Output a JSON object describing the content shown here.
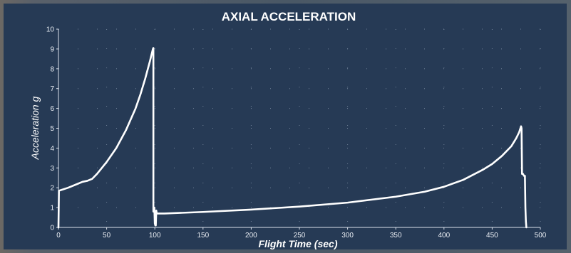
{
  "chart_data": {
    "type": "line",
    "title": "AXIAL ACCELERATION",
    "xlabel": "Flight Time (sec)",
    "ylabel": "Acceleration g",
    "xlim": [
      0,
      500
    ],
    "ylim": [
      0,
      10
    ],
    "xticks": [
      0,
      50,
      100,
      150,
      200,
      250,
      300,
      350,
      400,
      450,
      500
    ],
    "yticks": [
      0,
      1,
      2,
      3,
      4,
      5,
      6,
      7,
      8,
      9,
      10
    ],
    "grid": true,
    "line_color": "#ffffff",
    "background_color": "#263a55",
    "series": [
      {
        "x": [
          0,
          0.5,
          10,
          20,
          25,
          30,
          35,
          40,
          50,
          60,
          70,
          80,
          85,
          90,
          95,
          97,
          98,
          98.5,
          98.5,
          99.5,
          100,
          100.5,
          101,
          101.5,
          102,
          110,
          150,
          200,
          250,
          300,
          350,
          380,
          400,
          420,
          440,
          450,
          460,
          470,
          475,
          478,
          480,
          480.5,
          481,
          482,
          483,
          484,
          484.5,
          485,
          485.5
        ],
        "y": [
          0,
          1.85,
          2.0,
          2.2,
          2.3,
          2.35,
          2.45,
          2.7,
          3.3,
          4.0,
          4.9,
          6.0,
          6.7,
          7.5,
          8.4,
          8.8,
          9.0,
          9.05,
          0.8,
          1.0,
          0.2,
          0.1,
          0.1,
          0.85,
          0.7,
          0.7,
          0.78,
          0.9,
          1.05,
          1.25,
          1.55,
          1.8,
          2.05,
          2.4,
          2.9,
          3.2,
          3.6,
          4.1,
          4.5,
          4.8,
          5.1,
          5.0,
          2.7,
          2.7,
          2.6,
          2.6,
          1.0,
          0.3,
          0.0
        ]
      }
    ]
  }
}
